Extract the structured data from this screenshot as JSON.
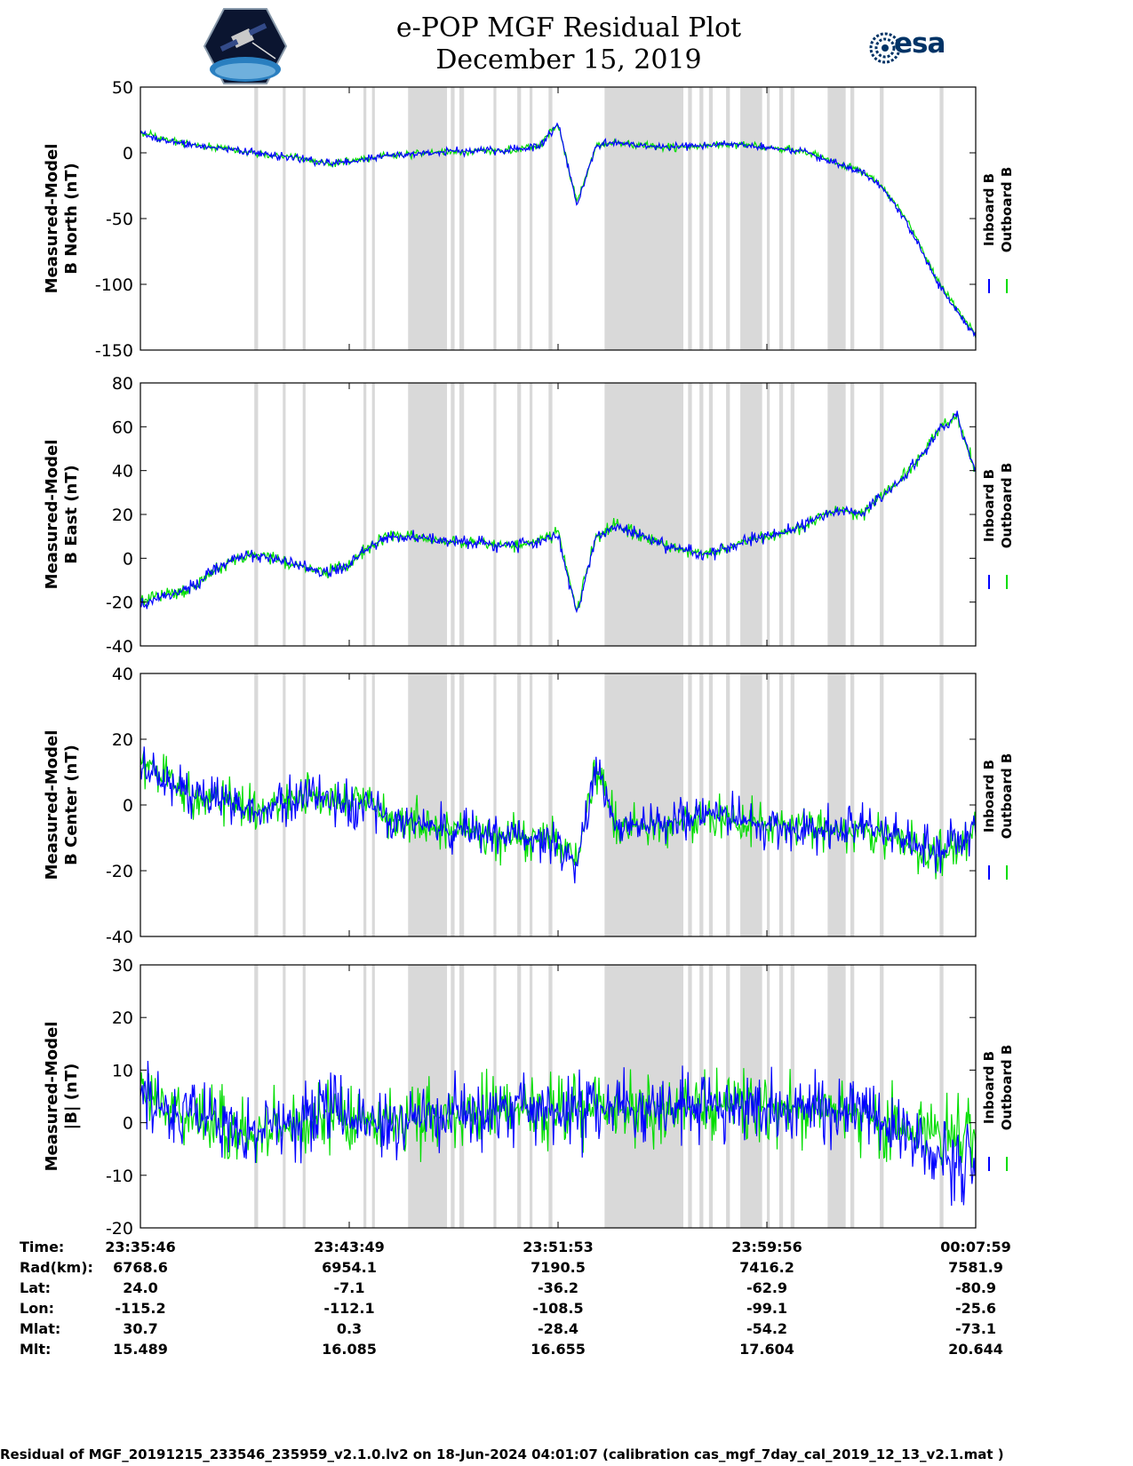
{
  "header": {
    "title_line1": "e-POP MGF Residual Plot",
    "title_line2": "December 15, 2019",
    "logo_epop": "cassiope-mission-logo",
    "logo_esa_text": "esa"
  },
  "colors": {
    "inboard": "#0000ff",
    "outboard": "#00dd00",
    "shade": "#d9d9d9"
  },
  "legend": {
    "inboard": "Inboard B",
    "outboard": "Outboard B"
  },
  "chart_data": [
    {
      "type": "line",
      "ylabel": [
        "Measured-Model",
        "B North (nT)"
      ],
      "ylim": [
        -150,
        50
      ],
      "yticks": [
        -150,
        -100,
        -50,
        0,
        50
      ],
      "x": [
        0,
        1,
        2,
        3,
        4,
        5,
        6,
        7,
        8,
        9,
        10,
        11,
        12,
        13,
        14,
        15,
        16,
        17,
        18,
        19,
        20,
        21,
        22,
        23,
        24,
        25,
        26,
        27,
        28,
        29,
        30,
        31,
        32,
        33,
        34,
        35,
        36,
        37,
        38,
        39,
        40,
        41,
        42,
        43,
        44
      ],
      "series": [
        {
          "name": "Inboard B",
          "values": [
            15,
            10,
            8,
            6,
            4,
            2,
            0,
            -2,
            -3,
            -6,
            -8,
            -7,
            -4,
            -2,
            -1,
            0,
            1,
            1,
            2,
            2,
            3,
            5,
            22,
            -40,
            5,
            8,
            6,
            5,
            4,
            5,
            6,
            7,
            6,
            4,
            3,
            1,
            -5,
            -10,
            -15,
            -25,
            -45,
            -70,
            -100,
            -120,
            -140
          ]
        },
        {
          "name": "Outboard B",
          "values": [
            16,
            11,
            8,
            6,
            4,
            2,
            0,
            -2,
            -3,
            -6,
            -8,
            -7,
            -4,
            -2,
            -1,
            0,
            1,
            1,
            2,
            2,
            3,
            5,
            22,
            -38,
            5,
            8,
            6,
            5,
            4,
            5,
            6,
            7,
            6,
            4,
            3,
            1,
            -4,
            -9,
            -14,
            -24,
            -43,
            -68,
            -98,
            -118,
            -138
          ]
        }
      ]
    },
    {
      "type": "line",
      "ylabel": [
        "Measured-Model",
        "B East (nT)"
      ],
      "ylim": [
        -40,
        80
      ],
      "yticks": [
        -40,
        -20,
        0,
        20,
        40,
        60,
        80
      ],
      "x": [
        0,
        1,
        2,
        3,
        4,
        5,
        6,
        7,
        8,
        9,
        10,
        11,
        12,
        13,
        14,
        15,
        16,
        17,
        18,
        19,
        20,
        21,
        22,
        23,
        24,
        25,
        26,
        27,
        28,
        29,
        30,
        31,
        32,
        33,
        34,
        35,
        36,
        37,
        38,
        39,
        40,
        41,
        42,
        43,
        44
      ],
      "series": [
        {
          "name": "Inboard B",
          "values": [
            -22,
            -18,
            -16,
            -12,
            -5,
            0,
            2,
            0,
            -3,
            -5,
            -6,
            -3,
            5,
            10,
            10,
            9,
            8,
            7,
            7,
            6,
            6,
            8,
            10,
            -25,
            10,
            15,
            12,
            8,
            5,
            3,
            2,
            5,
            8,
            10,
            12,
            15,
            20,
            22,
            20,
            28,
            35,
            45,
            58,
            65,
            40
          ]
        },
        {
          "name": "Outboard B",
          "values": [
            -20,
            -17,
            -16,
            -12,
            -5,
            0,
            2,
            0,
            -3,
            -5,
            -6,
            -3,
            5,
            10,
            10,
            9,
            8,
            7,
            7,
            6,
            6,
            8,
            12,
            -24,
            10,
            15,
            12,
            8,
            5,
            3,
            2,
            5,
            8,
            10,
            12,
            15,
            20,
            22,
            20,
            28,
            35,
            45,
            58,
            65,
            40
          ]
        }
      ]
    },
    {
      "type": "line",
      "ylabel": [
        "Measured-Model",
        "B Center (nT)"
      ],
      "ylim": [
        -40,
        40
      ],
      "yticks": [
        -40,
        -20,
        0,
        20,
        40
      ],
      "x": [
        0,
        1,
        2,
        3,
        4,
        5,
        6,
        7,
        8,
        9,
        10,
        11,
        12,
        13,
        14,
        15,
        16,
        17,
        18,
        19,
        20,
        21,
        22,
        23,
        24,
        25,
        26,
        27,
        28,
        29,
        30,
        31,
        32,
        33,
        34,
        35,
        36,
        37,
        38,
        39,
        40,
        41,
        42,
        43,
        44
      ],
      "series": [
        {
          "name": "Inboard B",
          "values": [
            12,
            8,
            5,
            3,
            2,
            0,
            -2,
            0,
            2,
            3,
            2,
            0,
            2,
            -4,
            -5,
            -6,
            -7,
            -8,
            -9,
            -10,
            -10,
            -10,
            -12,
            -18,
            12,
            -5,
            -6,
            -6,
            -5,
            -4,
            -3,
            -4,
            -5,
            -6,
            -7,
            -6,
            -8,
            -8,
            -6,
            -8,
            -10,
            -12,
            -15,
            -10,
            -8
          ]
        },
        {
          "name": "Outboard B",
          "values": [
            14,
            8,
            5,
            3,
            2,
            0,
            -2,
            0,
            2,
            3,
            2,
            0,
            2,
            -4,
            -5,
            -6,
            -7,
            -8,
            -9,
            -10,
            -10,
            -10,
            -12,
            -17,
            12,
            -5,
            -6,
            -6,
            -5,
            -4,
            -3,
            -4,
            -5,
            -6,
            -7,
            -6,
            -8,
            -8,
            -7,
            -9,
            -11,
            -14,
            -16,
            -12,
            -10
          ]
        }
      ]
    },
    {
      "type": "line",
      "ylabel": [
        "Measured-Model",
        "|B| (nT)"
      ],
      "ylim": [
        -20,
        30
      ],
      "yticks": [
        -20,
        -10,
        0,
        10,
        20,
        30
      ],
      "x": [
        0,
        1,
        2,
        3,
        4,
        5,
        6,
        7,
        8,
        9,
        10,
        11,
        12,
        13,
        14,
        15,
        16,
        17,
        18,
        19,
        20,
        21,
        22,
        23,
        24,
        25,
        26,
        27,
        28,
        29,
        30,
        31,
        32,
        33,
        34,
        35,
        36,
        37,
        38,
        39,
        40,
        41,
        42,
        43,
        44
      ],
      "series": [
        {
          "name": "Inboard B",
          "values": [
            5,
            3,
            2,
            1,
            0,
            -1,
            -2,
            -1,
            0,
            1,
            2,
            1,
            0,
            0,
            0,
            1,
            1,
            2,
            2,
            2,
            3,
            3,
            2,
            2,
            3,
            3,
            3,
            3,
            3,
            3,
            3,
            3,
            3,
            3,
            3,
            3,
            2,
            2,
            1,
            0,
            -2,
            -4,
            -6,
            -8,
            -8
          ]
        },
        {
          "name": "Outboard B",
          "values": [
            6,
            3,
            2,
            1,
            0,
            -1,
            -2,
            -1,
            0,
            1,
            2,
            1,
            0,
            0,
            0,
            1,
            1,
            2,
            2,
            2,
            3,
            3,
            2,
            2,
            3,
            3,
            3,
            3,
            3,
            3,
            3,
            3,
            3,
            3,
            3,
            3,
            2,
            2,
            1,
            0,
            -1,
            -2,
            -2,
            -2,
            -2
          ]
        }
      ]
    }
  ],
  "shaded_intervals": [
    [
      12,
      12.4
    ],
    [
      15,
      15.3
    ],
    [
      17.1,
      17.4
    ],
    [
      23.5,
      23.8
    ],
    [
      24.4,
      24.7
    ],
    [
      28.2,
      32.3
    ],
    [
      32.7,
      33.1
    ],
    [
      33.6,
      34.1
    ],
    [
      37.2,
      37.5
    ],
    [
      39.7,
      40.1
    ],
    [
      41,
      41.3
    ],
    [
      43,
      43.4
    ],
    [
      48.9,
      57.2
    ],
    [
      57.7,
      58.1
    ],
    [
      58.9,
      59.3
    ],
    [
      59.9,
      60.3
    ],
    [
      61.7,
      62.1
    ],
    [
      63.2,
      65.5
    ],
    [
      66,
      66.3
    ],
    [
      67.3,
      67.7
    ],
    [
      68.5,
      68.9
    ],
    [
      72.4,
      74.3
    ],
    [
      74.8,
      75.2
    ],
    [
      77.9,
      78.3
    ],
    [
      84.2,
      84.6
    ]
  ],
  "x_ticks": [
    "23:35:46",
    "23:43:49",
    "23:51:53",
    "23:59:56",
    "00:07:59"
  ],
  "info_table": {
    "labels": [
      "Time:",
      "Rad(km):",
      "Lat:",
      "Lon:",
      "Mlat:",
      "Mlt:"
    ],
    "rows": [
      [
        "23:35:46",
        "23:43:49",
        "23:51:53",
        "23:59:56",
        "00:07:59"
      ],
      [
        "6768.6",
        "6954.1",
        "7190.5",
        "7416.2",
        "7581.9"
      ],
      [
        "24.0",
        "-7.1",
        "-36.2",
        "-62.9",
        "-80.9"
      ],
      [
        "-115.2",
        "-112.1",
        "-108.5",
        "-99.1",
        "-25.6"
      ],
      [
        "30.7",
        "0.3",
        "-28.4",
        "-54.2",
        "-73.1"
      ],
      [
        "15.489",
        "16.085",
        "16.655",
        "17.604",
        "20.644"
      ]
    ]
  },
  "footer": "Residual of MGF_20191215_233546_235959_v2.1.0.lv2 on 18-Jun-2024 04:01:07 (calibration cas_mgf_7day_cal_2019_12_13_v2.1.mat )"
}
